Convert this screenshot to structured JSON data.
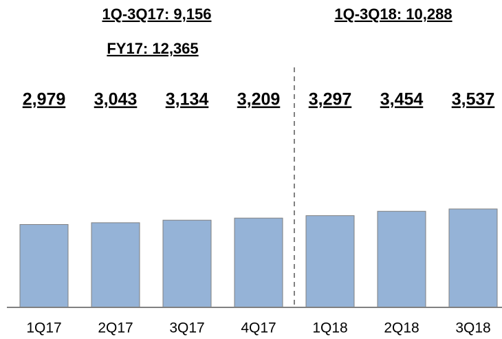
{
  "chart_data": {
    "type": "bar",
    "annotations": [
      "1Q-3Q17: 9,156",
      "FY17: 12,365",
      "1Q-3Q18: 10,288"
    ],
    "categories": [
      "1Q17",
      "2Q17",
      "3Q17",
      "4Q17",
      "1Q18",
      "2Q18",
      "3Q18"
    ],
    "values": [
      2979,
      3043,
      3134,
      3209,
      3297,
      3454,
      3537
    ],
    "value_labels": [
      "2,979",
      "3,043",
      "3,134",
      "3,209",
      "3,297",
      "3,454",
      "3,537"
    ],
    "color": "#95b3d7",
    "ylim": [
      0,
      8700
    ]
  }
}
